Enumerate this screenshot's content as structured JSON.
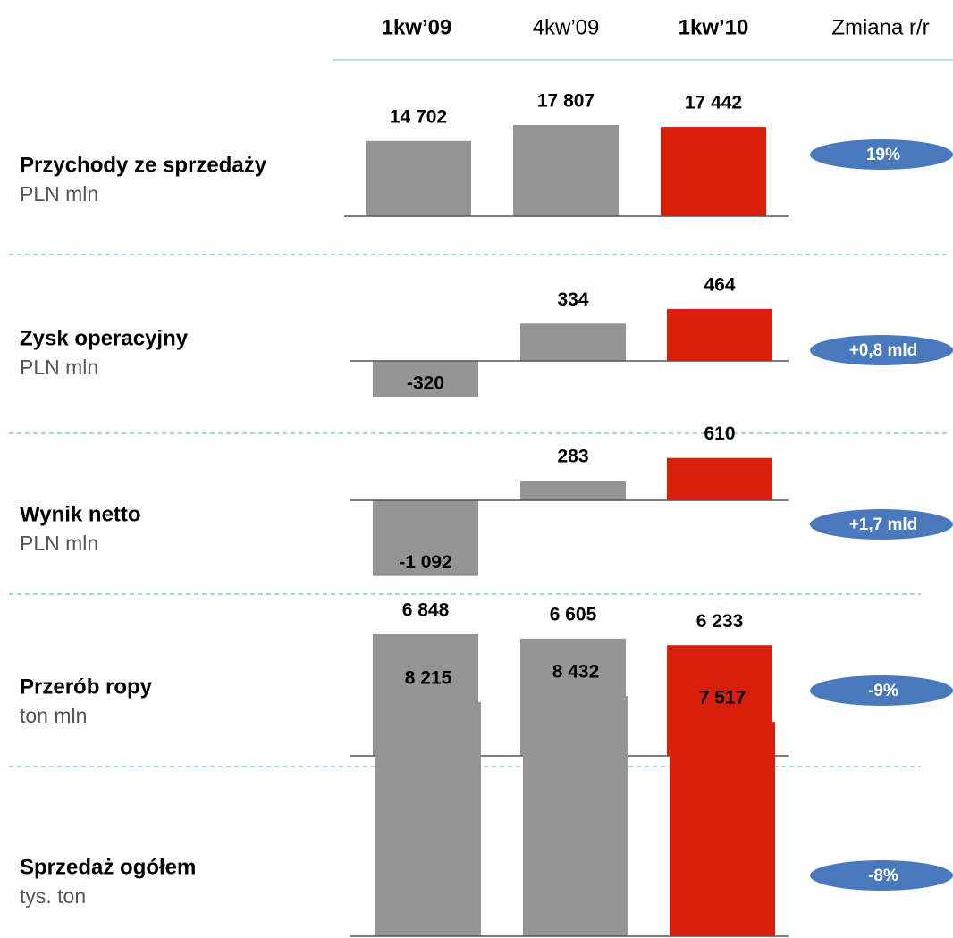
{
  "columns": [
    "1kw’09",
    "4kw’09",
    "1kw’10",
    "Zmiana r/r"
  ],
  "chart_data": [
    {
      "type": "bar",
      "title": "Przychody ze sprzedaży",
      "subtitle": "PLN mln",
      "values": [
        14702,
        17807,
        17442
      ],
      "value_labels": [
        "14 702",
        "17 807",
        "17 442"
      ],
      "colors": [
        "#959595",
        "#959595",
        "#d91e0a"
      ],
      "annotation": "19%"
    },
    {
      "type": "bar",
      "title": "Zysk operacyjny",
      "subtitle": "PLN mln",
      "values": [
        -320,
        334,
        464
      ],
      "colors": [
        "#959595",
        "#959595",
        "#d91e0a"
      ],
      "annotation": "+0,8 mld"
    },
    {
      "type": "bar",
      "title": "Wynik netto",
      "subtitle": "PLN mln",
      "values": [
        -1092,
        283,
        610
      ],
      "value_labels": [
        "-1 092",
        "283",
        "610"
      ],
      "colors": [
        "#959595",
        "#959595",
        "#d91e0a"
      ],
      "annotation": "+1,7 mld"
    },
    {
      "type": "bar",
      "title": "Przerób ropy",
      "subtitle": "ton mln",
      "values": [
        6848,
        6605,
        6233
      ],
      "value_labels": [
        "6 848",
        "6 605",
        "6 233"
      ],
      "colors": [
        "#959595",
        "#959595",
        "#d91e0a"
      ],
      "annotation": "-9%"
    },
    {
      "type": "bar",
      "title": "Sprzedaż ogółem",
      "subtitle": "tys. ton",
      "values": [
        8215,
        8432,
        7517
      ],
      "value_labels": [
        "8 215",
        "8 432",
        "7 517"
      ],
      "colors": [
        "#959595",
        "#959595",
        "#d91e0a"
      ],
      "annotation": "-8%"
    }
  ]
}
